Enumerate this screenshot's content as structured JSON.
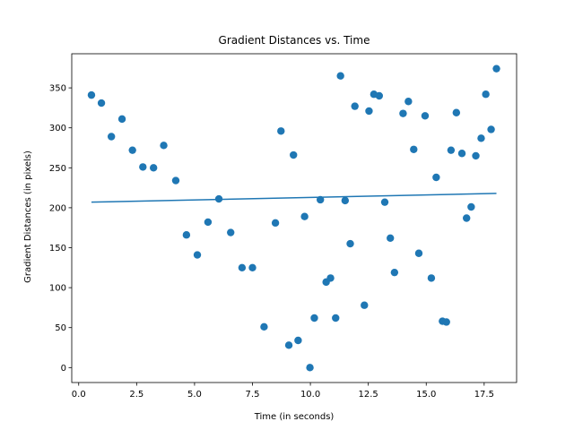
{
  "chart_data": {
    "type": "scatter",
    "title": "Gradient Distances vs. Time",
    "xlabel": "Time (in seconds)",
    "ylabel": "Gradient Distances (in pixels)",
    "xlim": [
      -0.3,
      18.9
    ],
    "ylim": [
      -18.7,
      392.7
    ],
    "xticks": [
      0.0,
      2.5,
      5.0,
      7.5,
      10.0,
      12.5,
      15.0,
      17.5
    ],
    "xtick_labels": [
      "0.0",
      "2.5",
      "5.0",
      "7.5",
      "10.0",
      "12.5",
      "15.0",
      "17.5"
    ],
    "yticks": [
      0,
      50,
      100,
      150,
      200,
      250,
      300,
      350
    ],
    "ytick_labels": [
      "0",
      "50",
      "100",
      "150",
      "200",
      "250",
      "300",
      "350"
    ],
    "grid": false,
    "colors": {
      "points": "#1f77b4",
      "fit_line": "#1f77b4"
    },
    "points": {
      "x": [
        0.55,
        0.98,
        1.41,
        1.87,
        2.32,
        2.77,
        3.23,
        3.67,
        4.19,
        4.65,
        5.12,
        5.58,
        6.05,
        6.56,
        7.05,
        7.5,
        8.0,
        8.49,
        8.73,
        9.07,
        9.27,
        9.47,
        9.75,
        9.98,
        10.17,
        10.43,
        10.68,
        10.87,
        11.09,
        11.3,
        11.5,
        11.72,
        11.92,
        12.33,
        12.53,
        12.74,
        12.97,
        13.21,
        13.45,
        13.63,
        14.0,
        14.23,
        14.46,
        14.68,
        14.95,
        15.22,
        15.43,
        15.7,
        15.87,
        16.07,
        16.3,
        16.54,
        16.74,
        16.94,
        17.14,
        17.37,
        17.57,
        17.8,
        18.03
      ],
      "y": [
        341,
        331,
        289,
        311,
        272,
        251,
        250,
        278,
        234,
        166,
        141,
        182,
        211,
        169,
        125,
        125,
        51,
        181,
        296,
        28,
        266,
        34,
        189,
        0,
        62,
        210,
        107,
        112,
        62,
        365,
        209,
        155,
        327,
        78,
        321,
        342,
        340,
        207,
        162,
        119,
        318,
        333,
        273,
        143,
        315,
        112,
        238,
        58,
        57,
        272,
        319,
        268,
        187,
        201,
        265,
        287,
        342,
        298,
        374
      ]
    },
    "fit_line": {
      "x": [
        0.55,
        18.03
      ],
      "y": [
        207,
        218
      ]
    }
  }
}
